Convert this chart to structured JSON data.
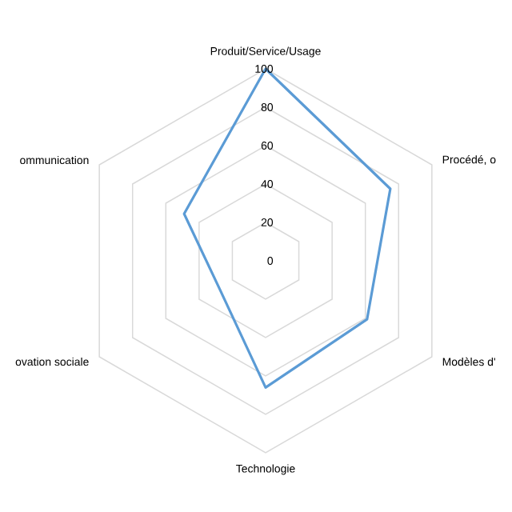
{
  "chart_data": {
    "type": "radar",
    "categories": [
      "Produit/Service/Usage",
      "Procédé, o",
      "Modèles d'",
      "Technologie",
      "ovation sociale",
      "ommunication"
    ],
    "series": [
      {
        "color": "#5b9bd5",
        "values": [
          100,
          75,
          61,
          66,
          28,
          49
        ]
      }
    ],
    "ylim": [
      0,
      100
    ],
    "yticks": [
      0,
      20,
      40,
      60,
      80,
      100
    ],
    "grid": true
  }
}
